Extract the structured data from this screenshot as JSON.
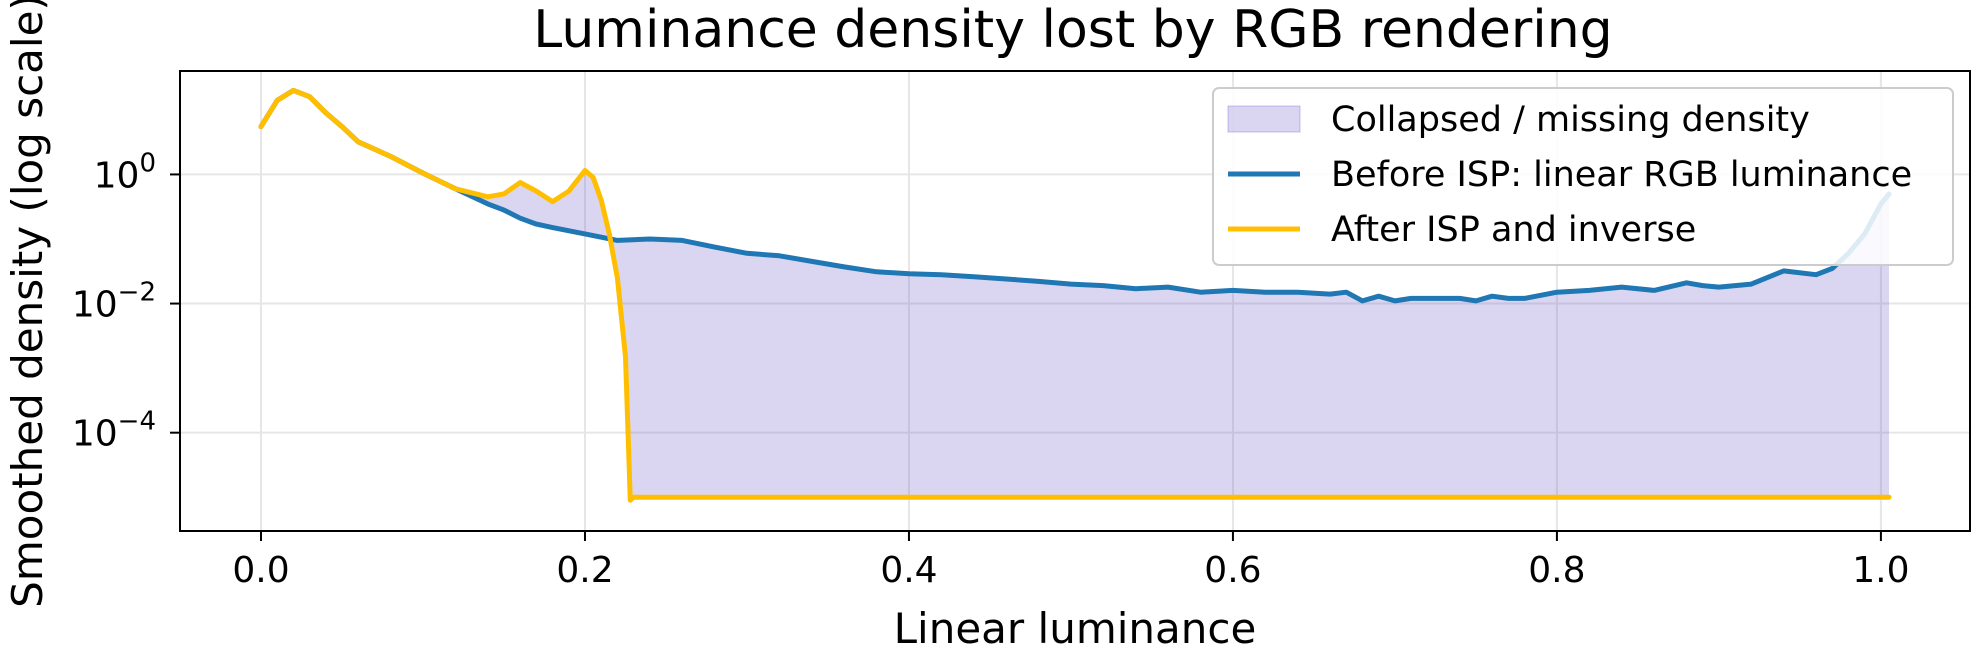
{
  "chart_data": {
    "type": "line",
    "title": "Luminance density lost by RGB rendering",
    "xlabel": "Linear luminance",
    "ylabel": "Smoothed density (log scale)",
    "xlim": [
      -0.05,
      1.055
    ],
    "ylim": [
      3e-06,
      40
    ],
    "yscale": "log",
    "grid": true,
    "legend_position": "top-right",
    "x_ticks": [
      0.0,
      0.2,
      0.4,
      0.6,
      0.8,
      1.0
    ],
    "x_tick_labels": [
      "0.0",
      "0.2",
      "0.4",
      "0.6",
      "0.8",
      "1.0"
    ],
    "y_ticks": [
      0.0001,
      0.01,
      1
    ],
    "y_tick_base": "10",
    "y_tick_exponents": [
      "−4",
      "−2",
      "0"
    ],
    "colors": {
      "fill": "#6a5acd",
      "before": "#1f77b4",
      "after": "#ffbf00"
    },
    "fill": {
      "name": "Collapsed / missing density"
    },
    "series": [
      {
        "name": "Before ISP: linear RGB luminance",
        "x": [
          0.0,
          0.01,
          0.02,
          0.03,
          0.04,
          0.05,
          0.06,
          0.08,
          0.1,
          0.12,
          0.14,
          0.15,
          0.16,
          0.17,
          0.18,
          0.2,
          0.22,
          0.24,
          0.26,
          0.28,
          0.3,
          0.32,
          0.34,
          0.36,
          0.38,
          0.4,
          0.42,
          0.44,
          0.46,
          0.48,
          0.5,
          0.52,
          0.54,
          0.56,
          0.58,
          0.6,
          0.62,
          0.64,
          0.66,
          0.67,
          0.68,
          0.69,
          0.7,
          0.71,
          0.72,
          0.74,
          0.75,
          0.76,
          0.77,
          0.78,
          0.8,
          0.82,
          0.84,
          0.86,
          0.88,
          0.89,
          0.9,
          0.92,
          0.94,
          0.96,
          0.97,
          0.98,
          0.99,
          1.0,
          1.005
        ],
        "values": [
          5.5,
          14,
          20,
          16,
          9,
          5.5,
          3.2,
          1.9,
          1.05,
          0.6,
          0.35,
          0.28,
          0.21,
          0.17,
          0.15,
          0.12,
          0.095,
          0.1,
          0.095,
          0.075,
          0.06,
          0.055,
          0.045,
          0.037,
          0.031,
          0.029,
          0.028,
          0.026,
          0.024,
          0.022,
          0.02,
          0.019,
          0.017,
          0.018,
          0.015,
          0.016,
          0.015,
          0.015,
          0.014,
          0.015,
          0.011,
          0.013,
          0.011,
          0.012,
          0.012,
          0.012,
          0.011,
          0.013,
          0.012,
          0.012,
          0.015,
          0.016,
          0.018,
          0.016,
          0.021,
          0.019,
          0.018,
          0.02,
          0.032,
          0.028,
          0.035,
          0.06,
          0.12,
          0.35,
          0.5
        ]
      },
      {
        "name": "After ISP and inverse",
        "x": [
          0.0,
          0.01,
          0.02,
          0.03,
          0.04,
          0.05,
          0.06,
          0.08,
          0.1,
          0.12,
          0.14,
          0.15,
          0.16,
          0.17,
          0.18,
          0.19,
          0.2,
          0.205,
          0.21,
          0.215,
          0.22,
          0.225,
          0.228,
          0.23,
          0.3,
          0.4,
          0.5,
          0.6,
          0.7,
          0.8,
          0.9,
          1.0,
          1.005
        ],
        "values": [
          5.5,
          14,
          20,
          16,
          9,
          5.5,
          3.2,
          1.9,
          1.05,
          0.6,
          0.45,
          0.5,
          0.75,
          0.55,
          0.38,
          0.55,
          1.15,
          0.9,
          0.4,
          0.12,
          0.025,
          0.0015,
          9e-06,
          1e-05,
          1e-05,
          1e-05,
          1e-05,
          1e-05,
          1e-05,
          1e-05,
          1e-05,
          1e-05,
          1e-05
        ]
      }
    ]
  }
}
